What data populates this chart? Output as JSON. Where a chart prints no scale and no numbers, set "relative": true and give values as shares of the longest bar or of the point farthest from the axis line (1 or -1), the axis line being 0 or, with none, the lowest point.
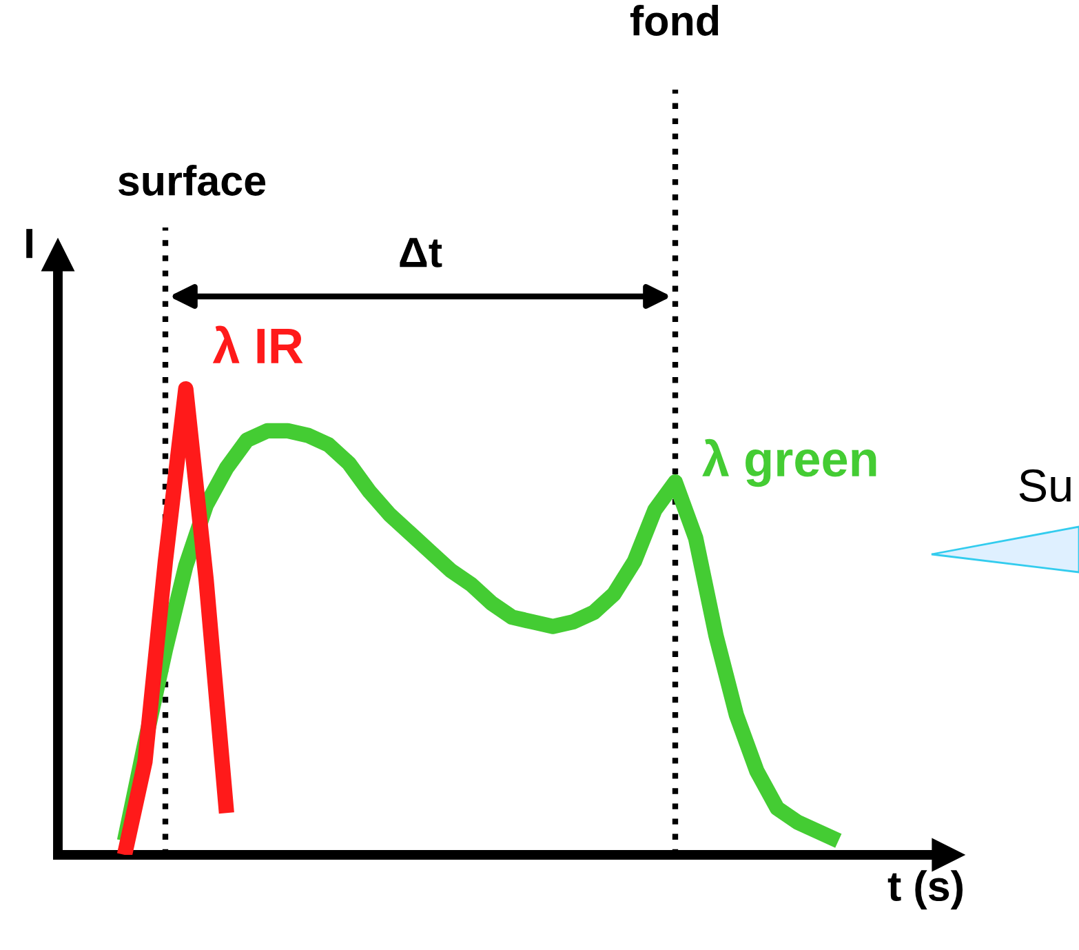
{
  "chart_data": {
    "type": "line",
    "relative": true,
    "xlabel": "t (s)",
    "ylabel": "I",
    "tick_labels": false,
    "marker": "none",
    "line_style": "solid",
    "categories": [
      null,
      null,
      null,
      null,
      null,
      null,
      null,
      null,
      null,
      null,
      null,
      null,
      null,
      null,
      null,
      null,
      null,
      null,
      null,
      null,
      null,
      null,
      null,
      null,
      null,
      null,
      null,
      null,
      null,
      null,
      null,
      null,
      null,
      null,
      null,
      null
    ],
    "series": [
      {
        "name": "λ IR",
        "color": "#ff1a1a",
        "values": [
          0.0,
          0.2,
          0.63,
          1.0,
          0.59,
          0.09,
          null,
          null,
          null,
          null,
          null,
          null,
          null,
          null,
          null,
          null,
          null,
          null,
          null,
          null,
          null,
          null,
          null,
          null,
          null,
          null,
          null,
          null,
          null,
          null,
          null,
          null,
          null,
          null,
          null,
          null
        ]
      },
      {
        "name": "λ green",
        "color": "#44cc33",
        "values": [
          0.03,
          0.24,
          0.44,
          0.62,
          0.75,
          0.83,
          0.89,
          0.91,
          0.91,
          0.9,
          0.88,
          0.84,
          0.78,
          0.73,
          0.69,
          0.65,
          0.61,
          0.58,
          0.54,
          0.51,
          0.5,
          0.49,
          0.5,
          0.52,
          0.56,
          0.63,
          0.74,
          0.8,
          0.68,
          0.47,
          0.3,
          0.18,
          0.1,
          0.07,
          0.05,
          0.03
        ]
      }
    ],
    "annotations": [
      "surface",
      "fond",
      "Δt",
      "Su"
    ]
  }
}
